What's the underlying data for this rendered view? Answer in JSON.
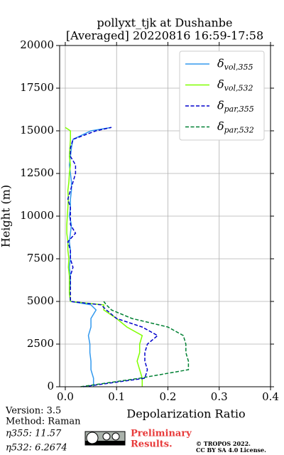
{
  "chart_data": {
    "type": "line",
    "title": [
      "pollyxt_tjk at Dushanbe",
      "[Averaged] 20220816 16:59-17:58"
    ],
    "xlabel": "Depolarization Ratio",
    "ylabel": "Height (m)",
    "xlim": [
      -0.011,
      0.4
    ],
    "xticks": [
      {
        "value": 0,
        "label": "0.0"
      },
      0.1,
      0.2,
      0.3,
      0.4
    ],
    "ylim": [
      0,
      20000
    ],
    "yticks": [
      0,
      2500,
      5000,
      7500,
      10000,
      12500,
      15000,
      17500,
      20000
    ],
    "grid": true,
    "legend": "upper-right",
    "y": [
      0,
      500,
      1000,
      1500,
      2000,
      2500,
      3000,
      3500,
      4000,
      4500,
      4800,
      5000,
      5500,
      6000,
      6500,
      7000,
      7500,
      8000,
      8500,
      9000,
      9500,
      10000,
      10500,
      11000,
      11500,
      12000,
      12500,
      13000,
      13500,
      14000,
      14500,
      15000,
      15200
    ],
    "series": [
      {
        "name": "δvol,355",
        "color": "#3399ee",
        "dash": false,
        "values": [
          0.055,
          0.055,
          0.05,
          0.05,
          0.048,
          0.048,
          0.045,
          0.05,
          0.05,
          0.06,
          0.05,
          0.01,
          0.008,
          0.01,
          0.01,
          0.008,
          0.01,
          0.01,
          0.008,
          0.01,
          0.012,
          0.008,
          0.01,
          0.01,
          0.012,
          0.012,
          0.01,
          0.008,
          0.01,
          0.012,
          0.015,
          0.05,
          0.09
        ]
      },
      {
        "name": "δvol,532",
        "color": "#80ff00",
        "dash": false,
        "values": [
          0.15,
          0.15,
          0.145,
          0.14,
          0.145,
          0.145,
          0.15,
          0.12,
          0.1,
          0.075,
          0.075,
          0.01,
          0.008,
          0.008,
          0.008,
          0.006,
          0.007,
          0.005,
          0.005,
          0.003,
          0.003,
          0.004,
          0.005,
          0.006,
          0.005,
          0.007,
          0.008,
          0.01,
          0.008,
          0.009,
          0.01,
          0.01,
          0
        ]
      },
      {
        "name": "δpar,355",
        "color": "#0000cc",
        "dash": true,
        "values": [
          0.035,
          0.155,
          0.16,
          0.155,
          0.155,
          0.16,
          0.18,
          0.15,
          0.1,
          0.08,
          0.07,
          0.01,
          0.01,
          0.01,
          0.01,
          0.015,
          0.01,
          0.01,
          0.005,
          0.02,
          0.01,
          0.01,
          0.01,
          0.005,
          0.01,
          0.015,
          0.02,
          0.02,
          0.01,
          0.01,
          0.015,
          0.06,
          0.09
        ]
      },
      {
        "name": "δpar,532",
        "color": "#008033",
        "dash": true,
        "values": [
          0.03,
          0.145,
          0.24,
          0.24,
          0.235,
          0.235,
          0.23,
          0.2,
          0.13,
          0.09,
          0.08,
          0.075,
          null,
          null,
          null,
          null,
          null,
          null,
          null,
          null,
          null,
          null,
          null,
          null,
          null,
          null,
          null,
          null,
          null,
          null,
          null,
          null,
          null
        ]
      }
    ]
  },
  "footer": {
    "version": "Version: 3.5",
    "method": "Method: Raman",
    "eta355": "η355:  11.57",
    "eta532": "η532: 6.2674",
    "preliminary": [
      "Preliminary",
      "Results."
    ],
    "license": [
      "© TROPOS 2022.",
      "CC BY SA 4.0 License."
    ]
  }
}
